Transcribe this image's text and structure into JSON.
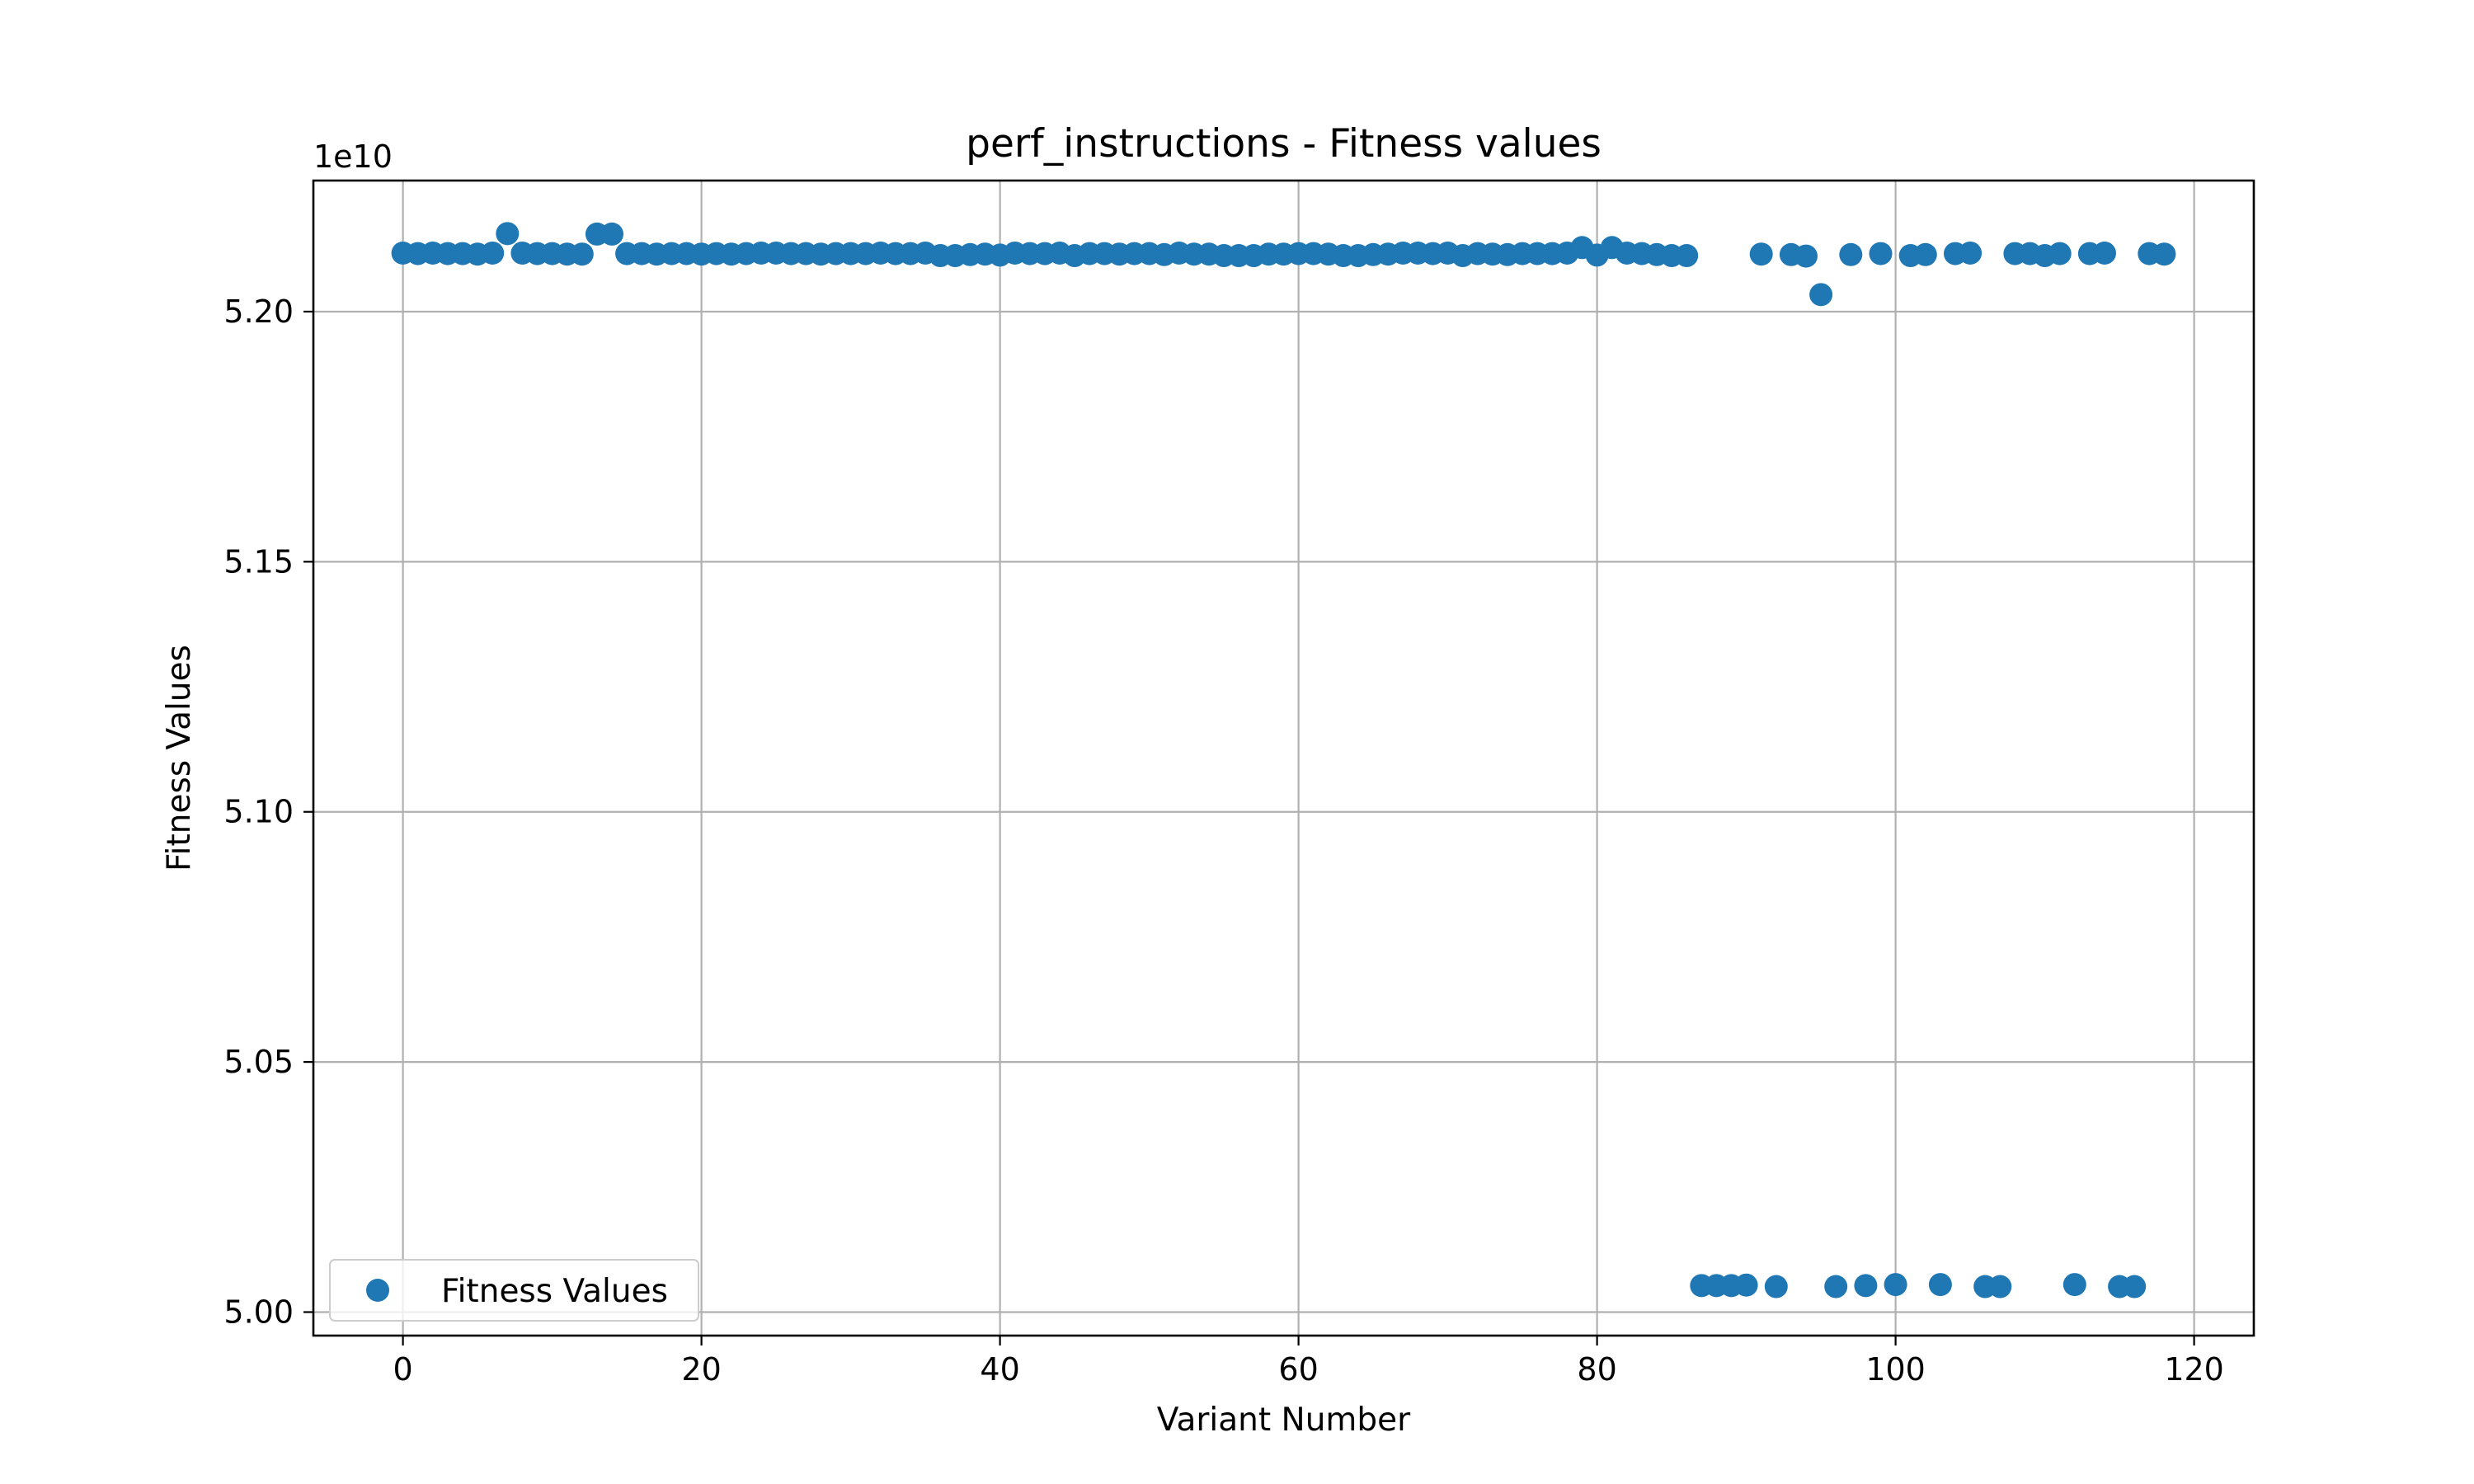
{
  "chart_data": {
    "type": "scatter",
    "title": "perf_instructions - Fitness values",
    "xlabel": "Variant Number",
    "ylabel": "Fitness Values",
    "offset_label": "1e10",
    "xlim": [
      -6,
      124
    ],
    "ylim": [
      4.9953,
      5.2262
    ],
    "y_scale": 10000000000.0,
    "xticks": [
      0,
      20,
      40,
      60,
      80,
      100,
      120
    ],
    "yticks": [
      5.0,
      5.05,
      5.1,
      5.15,
      5.2
    ],
    "ytick_labels": [
      "5.00",
      "5.05",
      "5.10",
      "5.15",
      "5.20"
    ],
    "grid": true,
    "legend": {
      "position": "lower-left",
      "entries": [
        "Fitness Values"
      ]
    },
    "colors": {
      "series": "#1f77b4",
      "grid": "#b0b0b0",
      "axes": "#000000"
    },
    "series": [
      {
        "name": "Fitness Values",
        "x": [
          0,
          1,
          2,
          3,
          4,
          5,
          6,
          7,
          8,
          9,
          10,
          11,
          12,
          13,
          14,
          15,
          16,
          17,
          18,
          19,
          20,
          21,
          22,
          23,
          24,
          25,
          26,
          27,
          28,
          29,
          30,
          31,
          32,
          33,
          34,
          35,
          36,
          37,
          38,
          39,
          40,
          41,
          42,
          43,
          44,
          45,
          46,
          47,
          48,
          49,
          50,
          51,
          52,
          53,
          54,
          55,
          56,
          57,
          58,
          59,
          60,
          61,
          62,
          63,
          64,
          65,
          66,
          67,
          68,
          69,
          70,
          71,
          72,
          73,
          74,
          75,
          76,
          77,
          78,
          79,
          80,
          81,
          82,
          83,
          84,
          85,
          86,
          87,
          88,
          89,
          90,
          91,
          92,
          93,
          94,
          95,
          96,
          97,
          98,
          99,
          100,
          101,
          102,
          103,
          104,
          105,
          106,
          107,
          108,
          109,
          110,
          111,
          112,
          113,
          114,
          115,
          116,
          117,
          118
        ],
        "y": [
          5.2117,
          5.2116,
          5.2117,
          5.2116,
          5.2116,
          5.2115,
          5.2117,
          5.2156,
          5.2117,
          5.2116,
          5.2116,
          5.2115,
          5.2115,
          5.2155,
          5.2155,
          5.2116,
          5.2116,
          5.2115,
          5.2116,
          5.2116,
          5.2115,
          5.2116,
          5.2115,
          5.2116,
          5.2117,
          5.2117,
          5.2116,
          5.2116,
          5.2115,
          5.2116,
          5.2116,
          5.2116,
          5.2117,
          5.2116,
          5.2116,
          5.2117,
          5.2112,
          5.2112,
          5.2114,
          5.2115,
          5.2113,
          5.2117,
          5.2116,
          5.2116,
          5.2117,
          5.2112,
          5.2116,
          5.2116,
          5.2115,
          5.2116,
          5.2116,
          5.2114,
          5.2117,
          5.2115,
          5.2115,
          5.2112,
          5.2112,
          5.2112,
          5.2115,
          5.2115,
          5.2116,
          5.2116,
          5.2115,
          5.2112,
          5.2112,
          5.2114,
          5.2115,
          5.2117,
          5.2117,
          5.2116,
          5.2117,
          5.2112,
          5.2116,
          5.2115,
          5.2114,
          5.2116,
          5.2116,
          5.2116,
          5.2117,
          5.2128,
          5.2113,
          5.2128,
          5.2117,
          5.2116,
          5.2114,
          5.2112,
          5.2112,
          5.0053,
          5.0053,
          5.0053,
          5.0054,
          5.2115,
          5.0051,
          5.2114,
          5.2111,
          5.2034,
          5.0051,
          5.2114,
          5.0053,
          5.2116,
          5.0055,
          5.2112,
          5.2114,
          5.0055,
          5.2116,
          5.2117,
          5.0051,
          5.0051,
          5.2116,
          5.2116,
          5.2112,
          5.2116,
          5.0055,
          5.2116,
          5.2117,
          5.0051,
          5.0051,
          5.2116,
          5.2115
        ]
      }
    ]
  }
}
